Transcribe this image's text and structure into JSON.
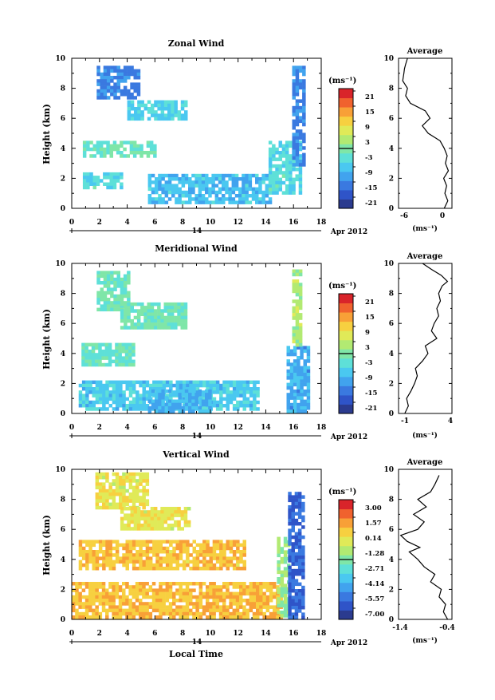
{
  "shared": {
    "ylabel": "Height (km)",
    "xticks": [
      "0",
      "2",
      "4",
      "6",
      "8",
      "10",
      "12",
      "14",
      "16",
      "18"
    ],
    "yticks": [
      "0",
      "2",
      "4",
      "6",
      "8",
      "10"
    ],
    "day_label": "14",
    "date_label": "Apr 2012",
    "xlabel": "Local Time",
    "avg_title": "Average",
    "unit_label": "(ms⁻¹)"
  },
  "colormap": [
    "#2b3b8f",
    "#2f54c8",
    "#3a79e0",
    "#41a3ee",
    "#4ac8f0",
    "#5ee0d8",
    "#7fe6a8",
    "#b2ea72",
    "#e0ea58",
    "#f7d040",
    "#f8a037",
    "#f0622e",
    "#d9242a"
  ],
  "panels": [
    {
      "id": "zonal",
      "title": "Zonal Wind",
      "colorbar_ticks": [
        "21",
        "15",
        "9",
        "3",
        "-3",
        "-9",
        "-15",
        "-21"
      ],
      "avg_xticks": [
        "-6",
        "0"
      ],
      "avg_xlim": [
        -7.5,
        1.5
      ]
    },
    {
      "id": "meridional",
      "title": "Meridional Wind",
      "colorbar_ticks": [
        "21",
        "15",
        "9",
        "3",
        "-3",
        "-9",
        "-15",
        "-21"
      ],
      "avg_xticks": [
        "-1",
        "4"
      ],
      "avg_xlim": [
        -1.5,
        4.5
      ]
    },
    {
      "id": "vertical",
      "title": "Vertical Wind",
      "colorbar_ticks": [
        "3.00",
        "1.57",
        "0.14",
        "-1.28",
        "-2.71",
        "-4.14",
        "-5.57",
        "-7.00"
      ],
      "avg_xticks": [
        "-1.4",
        "-0.4"
      ],
      "avg_xlim": [
        -1.55,
        -0.3
      ]
    }
  ],
  "chart_data": [
    {
      "type": "heatmap",
      "title": "Zonal Wind",
      "xlabel": "",
      "ylabel": "Height (km)",
      "xlim": [
        0,
        18
      ],
      "ylim": [
        0,
        10
      ],
      "colorbar_range": [
        -21,
        21
      ],
      "units": "(ms⁻¹)",
      "regions": [
        {
          "x": [
            1.8,
            4.8
          ],
          "y": [
            7.4,
            9.5
          ],
          "value": -12
        },
        {
          "x": [
            4.0,
            8.3
          ],
          "y": [
            6.0,
            7.2
          ],
          "value": -5
        },
        {
          "x": [
            0.8,
            6.0
          ],
          "y": [
            3.5,
            4.5
          ],
          "value": -2
        },
        {
          "x": [
            0.8,
            3.5
          ],
          "y": [
            1.5,
            2.4
          ],
          "value": -4
        },
        {
          "x": [
            5.5,
            14.2
          ],
          "y": [
            0.3,
            2.3
          ],
          "value": -7
        },
        {
          "x": [
            14.2,
            16.6
          ],
          "y": [
            1.0,
            4.5
          ],
          "value": -4
        },
        {
          "x": [
            15.9,
            16.8
          ],
          "y": [
            3.0,
            9.5
          ],
          "value": -12
        }
      ]
    },
    {
      "type": "line",
      "title": "Average",
      "xlabel": "(ms⁻¹)",
      "ylabel": "",
      "xlim": [
        -7.5,
        1.5
      ],
      "ylim": [
        0,
        10
      ],
      "series": [
        {
          "x": [
            0.2,
            0.8,
            0.3,
            0.6,
            0.1,
            0.9,
            0.4,
            0.7,
            0.2,
            -0.5,
            -2.5,
            -3.5,
            -2.2,
            -3.0,
            -5.5,
            -6.3,
            -6.0,
            -6.8,
            -6.6,
            -6.5,
            -6.3,
            -6.0
          ],
          "y": [
            0.0,
            0.5,
            1.0,
            1.5,
            2.0,
            2.5,
            3.0,
            3.5,
            4.0,
            4.5,
            5.0,
            5.5,
            6.0,
            6.5,
            7.0,
            7.5,
            8.0,
            8.5,
            9.0,
            9.3,
            9.6,
            10.0
          ]
        }
      ]
    },
    {
      "type": "heatmap",
      "title": "Meridional Wind",
      "xlabel": "",
      "ylabel": "Height (km)",
      "xlim": [
        0,
        18
      ],
      "ylim": [
        0,
        10
      ],
      "colorbar_range": [
        -21,
        21
      ],
      "units": "(ms⁻¹)",
      "regions": [
        {
          "x": [
            1.8,
            4.0
          ],
          "y": [
            7.0,
            9.5
          ],
          "value": -1
        },
        {
          "x": [
            3.5,
            8.3
          ],
          "y": [
            5.8,
            7.4
          ],
          "value": -1
        },
        {
          "x": [
            0.7,
            4.5
          ],
          "y": [
            3.2,
            4.7
          ],
          "value": -2
        },
        {
          "x": [
            0.5,
            13.5
          ],
          "y": [
            0.2,
            2.2
          ],
          "value": -6
        },
        {
          "x": [
            5.5,
            10.0
          ],
          "y": [
            0.2,
            1.6
          ],
          "value": -8
        },
        {
          "x": [
            15.5,
            17.0
          ],
          "y": [
            0.2,
            4.5
          ],
          "value": -9
        },
        {
          "x": [
            15.9,
            16.6
          ],
          "y": [
            4.5,
            9.6
          ],
          "value": 3
        }
      ]
    },
    {
      "type": "line",
      "title": "Average",
      "xlabel": "(ms⁻¹)",
      "ylabel": "",
      "xlim": [
        -1.5,
        4.5
      ],
      "ylim": [
        0,
        10
      ],
      "series": [
        {
          "x": [
            -0.8,
            -0.4,
            -0.6,
            -0.1,
            0.3,
            0.6,
            0.4,
            1.2,
            1.8,
            1.5,
            2.8,
            2.2,
            2.5,
            3.0,
            2.8,
            3.2,
            3.0,
            3.4,
            4.0,
            3.3,
            2.2,
            1.2
          ],
          "y": [
            0.0,
            0.5,
            1.0,
            1.5,
            2.0,
            2.5,
            3.0,
            3.5,
            4.0,
            4.5,
            5.0,
            5.5,
            6.0,
            6.5,
            7.0,
            7.5,
            8.0,
            8.5,
            8.8,
            9.2,
            9.6,
            10.0
          ]
        }
      ]
    },
    {
      "type": "heatmap",
      "title": "Vertical Wind",
      "xlabel": "Local Time",
      "ylabel": "Height (km)",
      "xlim": [
        0,
        18
      ],
      "ylim": [
        0,
        10
      ],
      "colorbar_range": [
        -7.0,
        3.0
      ],
      "units": "(ms⁻¹)",
      "regions": [
        {
          "x": [
            1.7,
            5.5
          ],
          "y": [
            7.5,
            9.8
          ],
          "value": -0.3
        },
        {
          "x": [
            3.5,
            8.5
          ],
          "y": [
            6.0,
            7.5
          ],
          "value": -0.3
        },
        {
          "x": [
            0.0,
            15.0
          ],
          "y": [
            0.2,
            2.5
          ],
          "value": 0.6
        },
        {
          "x": [
            0.5,
            12.5
          ],
          "y": [
            3.5,
            5.3
          ],
          "value": 0.5
        },
        {
          "x": [
            14.8,
            15.6
          ],
          "y": [
            0.2,
            5.5
          ],
          "value": -1.5
        },
        {
          "x": [
            15.6,
            16.6
          ],
          "y": [
            0.2,
            8.5
          ],
          "value": -5.5
        }
      ]
    },
    {
      "type": "line",
      "title": "Average",
      "xlabel": "(ms⁻¹)",
      "ylabel": "",
      "xlim": [
        -1.55,
        -0.3
      ],
      "ylim": [
        0,
        10
      ],
      "series": [
        {
          "x": [
            -0.4,
            -0.5,
            -0.45,
            -0.6,
            -0.55,
            -0.8,
            -0.7,
            -0.95,
            -1.1,
            -1.3,
            -1.05,
            -1.35,
            -1.5,
            -1.1,
            -0.95,
            -1.2,
            -0.9,
            -1.1,
            -0.8,
            -0.7,
            -0.6
          ],
          "y": [
            0.0,
            0.5,
            1.0,
            1.5,
            2.0,
            2.5,
            3.0,
            3.5,
            4.0,
            4.5,
            4.8,
            5.2,
            5.6,
            6.0,
            6.5,
            7.0,
            7.5,
            8.0,
            8.5,
            9.0,
            9.6
          ]
        }
      ]
    }
  ]
}
